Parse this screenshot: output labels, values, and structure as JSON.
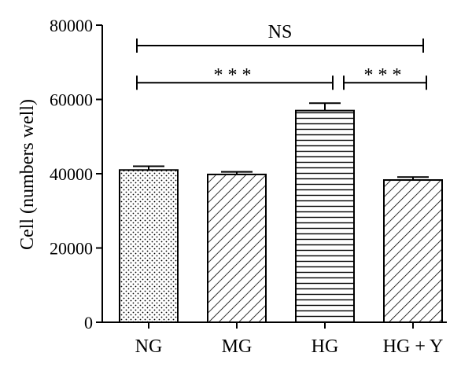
{
  "chart_data": {
    "type": "bar",
    "title": "",
    "xlabel": "",
    "ylabel": "Cell (numbers well)",
    "ylim": [
      0,
      80000
    ],
    "yticks": [
      0,
      20000,
      40000,
      60000,
      80000
    ],
    "grid": false,
    "legend": "none",
    "categories": [
      "NG",
      "MG",
      "HG",
      "HG + Y"
    ],
    "values": [
      41000,
      39800,
      57000,
      38300
    ],
    "errors": [
      1000,
      700,
      2000,
      800
    ],
    "patterns": [
      "dots",
      "diagonal",
      "horizontal",
      "diagonal"
    ],
    "bar_color": "#ffffff",
    "line_color": "#000000",
    "annotations": [
      {
        "from": "NG",
        "to": "HG + Y",
        "label": "NS",
        "level": 74500
      },
      {
        "from": "NG",
        "to": "HG",
        "label": "***",
        "level": 64500
      },
      {
        "from": "HG",
        "to": "HG + Y",
        "label": "***",
        "level": 64500
      }
    ]
  }
}
